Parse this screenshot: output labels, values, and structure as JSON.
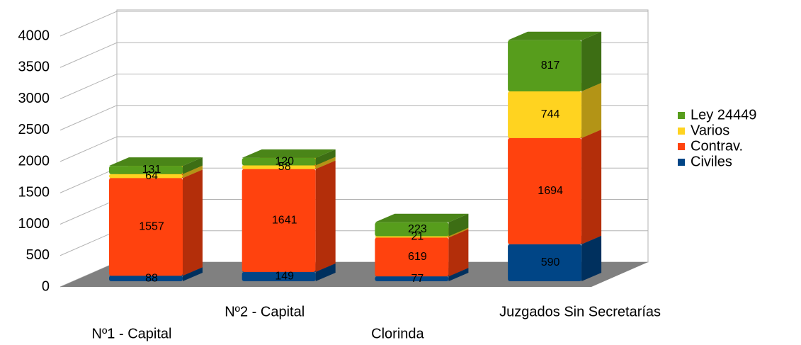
{
  "chart_data": {
    "type": "bar3d_stacked",
    "categories": [
      "Nº1 - Capital",
      "Nº2 - Capital",
      "Clorinda",
      "Juzgados Sin Secretarías"
    ],
    "series": [
      {
        "name": "Civiles",
        "color": "#004586",
        "values": [
          88,
          149,
          77,
          590
        ]
      },
      {
        "name": "Contrav.",
        "color": "#ff420e",
        "values": [
          1557,
          1641,
          619,
          1694
        ]
      },
      {
        "name": "Varios",
        "color": "#ffd320",
        "values": [
          64,
          58,
          21,
          744
        ]
      },
      {
        "name": "Ley 24449",
        "color": "#579d1c",
        "values": [
          131,
          120,
          223,
          817
        ]
      }
    ],
    "ylim": [
      0,
      4000
    ],
    "yticks": [
      0,
      500,
      1000,
      1500,
      2000,
      2500,
      3000,
      3500,
      4000
    ],
    "grid": true,
    "legend": "right"
  }
}
